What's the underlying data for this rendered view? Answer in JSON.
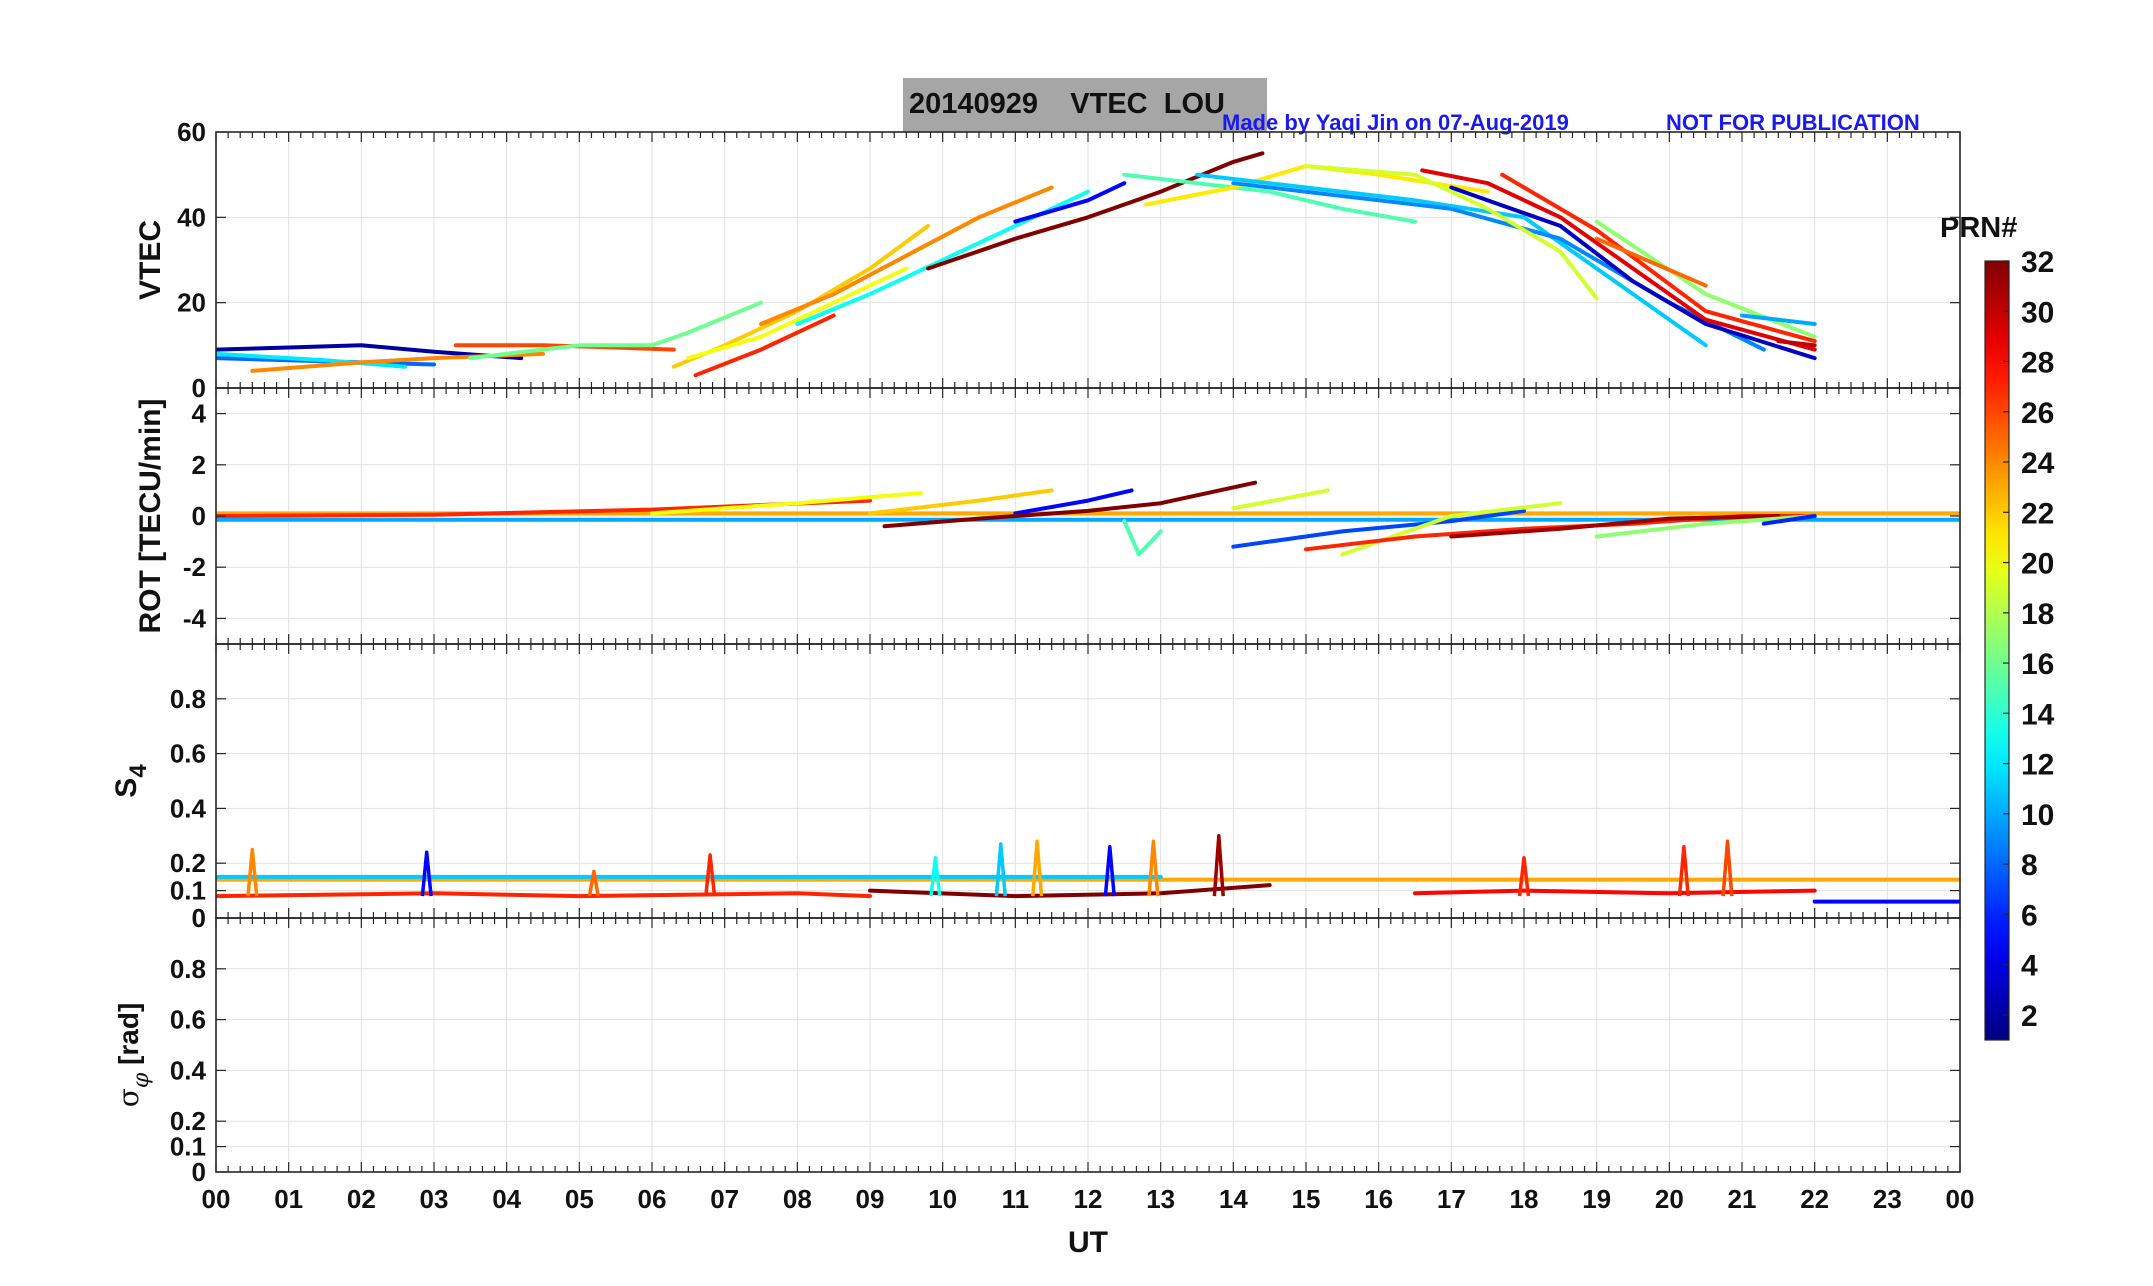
{
  "header": {
    "title_date": "20140929",
    "title_param": "VTEC",
    "title_station": "LOU",
    "made_by": "Made by Yaqi Jin on 07-Aug-2019",
    "not_for_publication": "NOT FOR PUBLICATION"
  },
  "colors": {
    "title_box": "#a6a6a6",
    "annotation_text": "#1a1aee",
    "grid": "#e2e2e2",
    "axis": "#262626"
  },
  "chart_data": [
    {
      "id": "vtec",
      "type": "line",
      "ylabel": "VTEC",
      "ylim": [
        0,
        60
      ],
      "yticks": [
        0,
        20,
        40,
        60
      ],
      "xlim": [
        0,
        24
      ],
      "series": [
        {
          "prn": 2,
          "x": [
            0.0,
            1.0,
            2.0,
            3.0,
            4.2
          ],
          "y": [
            9,
            9.5,
            10,
            8.5,
            7
          ]
        },
        {
          "prn": 8,
          "x": [
            0.0,
            1.0,
            2.0,
            3.0
          ],
          "y": [
            7,
            6.5,
            6,
            5.5
          ]
        },
        {
          "prn": 12,
          "x": [
            0.0,
            1.5,
            2.6
          ],
          "y": [
            8,
            6.5,
            5
          ]
        },
        {
          "prn": 24,
          "x": [
            0.5,
            2.0,
            3.0,
            4.5
          ],
          "y": [
            4,
            6,
            7,
            8
          ]
        },
        {
          "prn": 26,
          "x": [
            3.3,
            4.5,
            5.5,
            6.3
          ],
          "y": [
            10,
            10,
            9.5,
            9
          ]
        },
        {
          "prn": 16,
          "x": [
            3.5,
            5.0,
            6.0,
            6.5,
            7.5
          ],
          "y": [
            7,
            10,
            10,
            13,
            20
          ]
        },
        {
          "prn": 22,
          "x": [
            6.3,
            7.0,
            8.0,
            9.0,
            9.8
          ],
          "y": [
            5,
            10,
            18,
            28,
            38
          ]
        },
        {
          "prn": 20,
          "x": [
            6.5,
            7.5,
            8.5,
            9.5
          ],
          "y": [
            7,
            12,
            20,
            28
          ]
        },
        {
          "prn": 24,
          "x": [
            7.5,
            8.5,
            9.5,
            10.5,
            11.5
          ],
          "y": [
            15,
            22,
            31,
            40,
            47
          ]
        },
        {
          "prn": 27,
          "x": [
            6.6,
            7.5,
            8.5
          ],
          "y": [
            3,
            9,
            17
          ]
        },
        {
          "prn": 13,
          "x": [
            8.0,
            9.0,
            10.0,
            11.0,
            12.0
          ],
          "y": [
            15,
            22,
            30,
            38,
            46
          ]
        },
        {
          "prn": 5,
          "x": [
            11.0,
            12.0,
            12.5
          ],
          "y": [
            39,
            44,
            48
          ]
        },
        {
          "prn": 32,
          "x": [
            9.8,
            11.0,
            12.0,
            13.0,
            14.0,
            14.4
          ],
          "y": [
            28,
            35,
            40,
            46,
            53,
            55
          ]
        },
        {
          "prn": 15,
          "x": [
            12.5,
            13.5,
            14.5,
            15.5,
            16.5
          ],
          "y": [
            50,
            48,
            46,
            42,
            39
          ]
        },
        {
          "prn": 21,
          "x": [
            12.8,
            14.0,
            15.0,
            16.0,
            17.5
          ],
          "y": [
            43,
            47,
            52,
            50,
            46
          ]
        },
        {
          "prn": 11,
          "x": [
            13.5,
            15.0,
            16.5,
            18.0,
            19.5,
            20.5
          ],
          "y": [
            50,
            47,
            44,
            40,
            22,
            10
          ]
        },
        {
          "prn": 9,
          "x": [
            14.0,
            15.5,
            17.0,
            18.5,
            20.0,
            21.3
          ],
          "y": [
            48,
            45,
            42,
            35,
            20,
            9
          ]
        },
        {
          "prn": 29,
          "x": [
            16.6,
            17.5,
            18.5,
            19.5,
            20.5,
            22.0
          ],
          "y": [
            51,
            48,
            40,
            28,
            16,
            9
          ]
        },
        {
          "prn": 3,
          "x": [
            17.0,
            18.5,
            19.5,
            20.5,
            22.0
          ],
          "y": [
            47,
            38,
            25,
            15,
            7
          ]
        },
        {
          "prn": 19,
          "x": [
            15.0,
            16.5,
            17.5,
            18.5,
            19.0
          ],
          "y": [
            52,
            50,
            42,
            32,
            21
          ]
        },
        {
          "prn": 27,
          "x": [
            17.7,
            19.0,
            20.5,
            22.0
          ],
          "y": [
            50,
            37,
            18,
            11
          ]
        },
        {
          "prn": 17,
          "x": [
            19.0,
            20.5,
            22.0
          ],
          "y": [
            39,
            22,
            12
          ]
        },
        {
          "prn": 25,
          "x": [
            19.0,
            20.5
          ],
          "y": [
            35,
            24
          ]
        },
        {
          "prn": 10,
          "x": [
            21.0,
            22.0
          ],
          "y": [
            17,
            15
          ]
        },
        {
          "prn": 30,
          "x": [
            21.5,
            22.0
          ],
          "y": [
            11,
            10
          ]
        }
      ]
    },
    {
      "id": "rot",
      "type": "line",
      "ylabel": "ROT [TECU/min]",
      "ylim": [
        -5,
        5
      ],
      "yticks": [
        -4,
        -2,
        0,
        2,
        4
      ],
      "xlim": [
        0,
        24
      ],
      "series": [
        {
          "prn": 10,
          "x": [
            0,
            24
          ],
          "y": [
            -0.15,
            -0.15
          ]
        },
        {
          "prn": 23,
          "x": [
            0,
            24
          ],
          "y": [
            0.1,
            0.1
          ]
        },
        {
          "prn": 27,
          "x": [
            0.0,
            3.0,
            6.0,
            9.0
          ],
          "y": [
            0.0,
            0.05,
            0.25,
            0.6
          ]
        },
        {
          "prn": 20,
          "x": [
            6.0,
            8.0,
            9.7
          ],
          "y": [
            0.1,
            0.5,
            0.9
          ]
        },
        {
          "prn": 22,
          "x": [
            9.0,
            10.5,
            11.5
          ],
          "y": [
            0.1,
            0.6,
            1.0
          ]
        },
        {
          "prn": 5,
          "x": [
            11.0,
            12.0,
            12.6
          ],
          "y": [
            0.1,
            0.6,
            1.0
          ]
        },
        {
          "prn": 32,
          "x": [
            9.2,
            10.5,
            12.0,
            13.0,
            14.3
          ],
          "y": [
            -0.4,
            -0.1,
            0.2,
            0.5,
            1.3
          ]
        },
        {
          "prn": 19,
          "x": [
            14.0,
            15.3
          ],
          "y": [
            0.3,
            1.0
          ]
        },
        {
          "prn": 15,
          "x": [
            12.5,
            12.7,
            13.0
          ],
          "y": [
            -0.2,
            -1.5,
            -0.6
          ]
        },
        {
          "prn": 7,
          "x": [
            14.0,
            15.5,
            17.0,
            18.0
          ],
          "y": [
            -1.2,
            -0.6,
            -0.2,
            0.2
          ]
        },
        {
          "prn": 19,
          "x": [
            15.5,
            17.0,
            18.5
          ],
          "y": [
            -1.5,
            0.0,
            0.5
          ]
        },
        {
          "prn": 27,
          "x": [
            15.0,
            16.5,
            18.0,
            19.5,
            21.0,
            22.0
          ],
          "y": [
            -1.3,
            -0.8,
            -0.5,
            -0.3,
            0.0,
            0.0
          ]
        },
        {
          "prn": 31,
          "x": [
            17.0,
            18.5,
            20.0,
            21.5
          ],
          "y": [
            -0.8,
            -0.5,
            -0.1,
            0.0
          ]
        },
        {
          "prn": 17,
          "x": [
            19.0,
            20.5,
            22.0
          ],
          "y": [
            -0.8,
            -0.3,
            0.0
          ]
        },
        {
          "prn": 6,
          "x": [
            21.3,
            22.0
          ],
          "y": [
            -0.3,
            0.0
          ]
        }
      ]
    },
    {
      "id": "s4",
      "type": "line",
      "ylabel": "S4",
      "ylim": [
        0,
        1
      ],
      "yticks": [
        0,
        0.1,
        0.2,
        0.4,
        0.6,
        0.8
      ],
      "xlim": [
        0,
        24
      ],
      "series": [
        {
          "prn": 23,
          "x": [
            0,
            24
          ],
          "y": [
            0.14,
            0.14
          ]
        },
        {
          "prn": 11,
          "x": [
            0,
            13.0
          ],
          "y": [
            0.15,
            0.15
          ]
        },
        {
          "prn": 5,
          "x": [
            22,
            24
          ],
          "y": [
            0.06,
            0.06
          ]
        },
        {
          "prn": 27,
          "x": [
            0.0,
            3.0,
            5.0,
            8.0,
            9.0
          ],
          "y": [
            0.08,
            0.09,
            0.08,
            0.09,
            0.08
          ]
        },
        {
          "prn": 32,
          "x": [
            9.0,
            11.0,
            13.0,
            14.5
          ],
          "y": [
            0.1,
            0.08,
            0.09,
            0.12
          ]
        },
        {
          "prn": 28,
          "x": [
            16.5,
            18.0,
            20.0,
            22.0
          ],
          "y": [
            0.09,
            0.1,
            0.09,
            0.1
          ]
        }
      ],
      "spikes": [
        {
          "prn": 24,
          "x": 0.5,
          "peak": 0.25
        },
        {
          "prn": 5,
          "x": 2.9,
          "peak": 0.24
        },
        {
          "prn": 25,
          "x": 5.2,
          "peak": 0.17
        },
        {
          "prn": 27,
          "x": 6.8,
          "peak": 0.23
        },
        {
          "prn": 13,
          "x": 9.9,
          "peak": 0.22
        },
        {
          "prn": 11,
          "x": 10.8,
          "peak": 0.27
        },
        {
          "prn": 23,
          "x": 11.3,
          "peak": 0.28
        },
        {
          "prn": 5,
          "x": 12.3,
          "peak": 0.26
        },
        {
          "prn": 24,
          "x": 12.9,
          "peak": 0.28
        },
        {
          "prn": 31,
          "x": 13.8,
          "peak": 0.3
        },
        {
          "prn": 27,
          "x": 18.0,
          "peak": 0.22
        },
        {
          "prn": 27,
          "x": 20.2,
          "peak": 0.26
        },
        {
          "prn": 26,
          "x": 20.8,
          "peak": 0.28
        }
      ]
    },
    {
      "id": "sigma_phi",
      "type": "line",
      "ylabel": "σφ [rad]",
      "ylim": [
        0,
        1
      ],
      "yticks": [
        0,
        0.1,
        0.2,
        0.4,
        0.6,
        0.8
      ],
      "xlim": [
        0,
        24
      ],
      "series": []
    }
  ],
  "x_axis": {
    "label": "UT",
    "ticks": [
      "00",
      "01",
      "02",
      "03",
      "04",
      "05",
      "06",
      "07",
      "08",
      "09",
      "10",
      "11",
      "12",
      "13",
      "14",
      "15",
      "16",
      "17",
      "18",
      "19",
      "20",
      "21",
      "22",
      "23",
      "00"
    ]
  },
  "colorbar": {
    "label": "PRN#",
    "min": 1,
    "max": 32,
    "ticks": [
      2,
      4,
      6,
      8,
      10,
      12,
      14,
      16,
      18,
      20,
      22,
      24,
      26,
      28,
      30,
      32
    ]
  }
}
